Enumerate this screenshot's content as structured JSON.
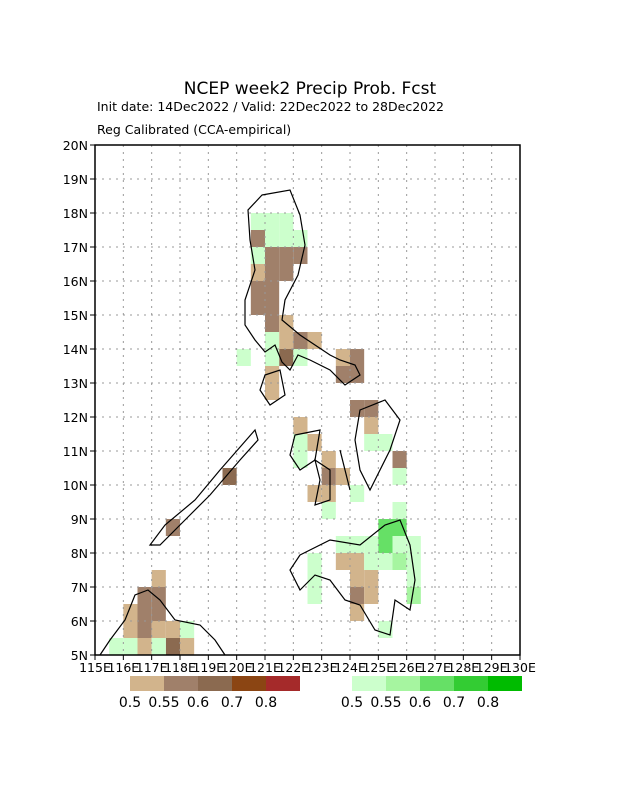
{
  "title": "NCEP week2 Precip Prob. Fcst",
  "subtitle": "Init date: 14Dec2022 / Valid: 22Dec2022 to 28Dec2022",
  "subtitle2": "Reg Calibrated (CCA-empirical)",
  "xlim": [
    115,
    130
  ],
  "ylim": [
    5,
    20
  ],
  "xticks": [
    {
      "value": 115,
      "label": "115E"
    },
    {
      "value": 116,
      "label": "116E"
    },
    {
      "value": 117,
      "label": "117E"
    },
    {
      "value": 118,
      "label": "118E"
    },
    {
      "value": 119,
      "label": "119E"
    },
    {
      "value": 120,
      "label": "120E"
    },
    {
      "value": 121,
      "label": "121E"
    },
    {
      "value": 122,
      "label": "122E"
    },
    {
      "value": 123,
      "label": "123E"
    },
    {
      "value": 124,
      "label": "124E"
    },
    {
      "value": 125,
      "label": "125E"
    },
    {
      "value": 126,
      "label": "126E"
    },
    {
      "value": 127,
      "label": "127E"
    },
    {
      "value": 128,
      "label": "128E"
    },
    {
      "value": 129,
      "label": "129E"
    },
    {
      "value": 130,
      "label": "130E"
    }
  ],
  "yticks": [
    {
      "value": 5,
      "label": "5N"
    },
    {
      "value": 6,
      "label": "6N"
    },
    {
      "value": 7,
      "label": "7N"
    },
    {
      "value": 8,
      "label": "8N"
    },
    {
      "value": 9,
      "label": "9N"
    },
    {
      "value": 10,
      "label": "10N"
    },
    {
      "value": 11,
      "label": "11N"
    },
    {
      "value": 12,
      "label": "12N"
    },
    {
      "value": 13,
      "label": "13N"
    },
    {
      "value": 14,
      "label": "14N"
    },
    {
      "value": 15,
      "label": "15N"
    },
    {
      "value": 16,
      "label": "16N"
    },
    {
      "value": 17,
      "label": "17N"
    },
    {
      "value": 18,
      "label": "18N"
    },
    {
      "value": 19,
      "label": "19N"
    },
    {
      "value": 20,
      "label": "20N"
    }
  ],
  "dry": {
    "colors": [
      "#d2b48c",
      "#a0806a",
      "#8b6a50",
      "#8b4513",
      "#a52a2a"
    ],
    "labels": [
      "0.5",
      "0.55",
      "0.6",
      "0.7",
      "0.8"
    ],
    "cells": [
      [
        120.5,
        17,
        1
      ],
      [
        121,
        16.5,
        1
      ],
      [
        121.5,
        16.5,
        1
      ],
      [
        122,
        16.5,
        1
      ],
      [
        120.5,
        16,
        0
      ],
      [
        121,
        16,
        1
      ],
      [
        121.5,
        16,
        1
      ],
      [
        120.5,
        15.5,
        1
      ],
      [
        121,
        15.5,
        1
      ],
      [
        120.5,
        15,
        1
      ],
      [
        121,
        15,
        1
      ],
      [
        121,
        14.5,
        1
      ],
      [
        121.5,
        14.5,
        0
      ],
      [
        121.5,
        14,
        0
      ],
      [
        122,
        14,
        1
      ],
      [
        122.5,
        14,
        0
      ],
      [
        121.5,
        13.5,
        2
      ],
      [
        123.5,
        13.5,
        0
      ],
      [
        124,
        13.5,
        1
      ],
      [
        121,
        13,
        0
      ],
      [
        123.5,
        13,
        1
      ],
      [
        124,
        13,
        1
      ],
      [
        121,
        12.5,
        0
      ],
      [
        124,
        12,
        1
      ],
      [
        124.5,
        12,
        1
      ],
      [
        122,
        11.5,
        0
      ],
      [
        124.5,
        11.5,
        0
      ],
      [
        122.5,
        11,
        0
      ],
      [
        123,
        10.5,
        0
      ],
      [
        125.5,
        10.5,
        1
      ],
      [
        123,
        10,
        1
      ],
      [
        123.5,
        10,
        0
      ],
      [
        122.5,
        9.5,
        0
      ],
      [
        123,
        9.5,
        0
      ],
      [
        119.5,
        10,
        2
      ],
      [
        117.5,
        8.5,
        1
      ],
      [
        123.5,
        7.5,
        0
      ],
      [
        124,
        7.5,
        0
      ],
      [
        124,
        7,
        0
      ],
      [
        124.5,
        7,
        0
      ],
      [
        124,
        6.5,
        1
      ],
      [
        124.5,
        6.5,
        0
      ],
      [
        124,
        6,
        0
      ],
      [
        117,
        7,
        0
      ],
      [
        116.5,
        6.5,
        1
      ],
      [
        117,
        6.5,
        1
      ],
      [
        116,
        6,
        0
      ],
      [
        116.5,
        6,
        1
      ],
      [
        117,
        6,
        1
      ],
      [
        116,
        5.5,
        0
      ],
      [
        116.5,
        5.5,
        1
      ],
      [
        117,
        5.5,
        0
      ],
      [
        117.5,
        5.5,
        0
      ],
      [
        116.5,
        5,
        0
      ],
      [
        117.5,
        5,
        2
      ],
      [
        118,
        5,
        0
      ]
    ]
  },
  "wet": {
    "colors": [
      "#ccffcc",
      "#a6f5a0",
      "#66e066",
      "#33cc33",
      "#00bb00"
    ],
    "labels": [
      "0.5",
      "0.55",
      "0.6",
      "0.7",
      "0.8"
    ],
    "cells": [
      [
        120.5,
        17.5,
        0
      ],
      [
        121,
        17.5,
        0
      ],
      [
        121.5,
        17.5,
        0
      ],
      [
        121,
        17,
        0
      ],
      [
        121.5,
        17,
        0
      ],
      [
        122,
        17,
        0
      ],
      [
        120.5,
        16.5,
        0
      ],
      [
        121,
        14,
        0
      ],
      [
        120,
        13.5,
        0
      ],
      [
        121,
        13.5,
        0
      ],
      [
        122,
        13.5,
        0
      ],
      [
        122,
        11,
        0
      ],
      [
        124.5,
        11,
        0
      ],
      [
        125,
        11,
        0
      ],
      [
        122,
        10.5,
        0
      ],
      [
        125.5,
        10,
        0
      ],
      [
        124,
        9.5,
        0
      ],
      [
        123,
        9,
        0
      ],
      [
        125.5,
        9,
        0
      ],
      [
        125,
        8.5,
        2
      ],
      [
        125.5,
        8.5,
        2
      ],
      [
        123.5,
        8,
        0
      ],
      [
        124,
        8,
        0
      ],
      [
        124.5,
        8,
        0
      ],
      [
        125,
        8,
        2
      ],
      [
        125.5,
        8,
        0
      ],
      [
        126,
        8,
        0
      ],
      [
        122.5,
        7.5,
        0
      ],
      [
        124.5,
        7.5,
        0
      ],
      [
        125,
        7.5,
        0
      ],
      [
        125.5,
        7.5,
        1
      ],
      [
        126,
        7.5,
        0
      ],
      [
        122.5,
        7,
        0
      ],
      [
        126,
        7,
        0
      ],
      [
        122.5,
        6.5,
        0
      ],
      [
        126,
        6.5,
        1
      ],
      [
        125,
        5.5,
        0
      ],
      [
        118,
        5.5,
        0
      ],
      [
        115.5,
        5,
        0
      ],
      [
        116,
        5,
        0
      ],
      [
        117,
        5,
        0
      ]
    ]
  }
}
